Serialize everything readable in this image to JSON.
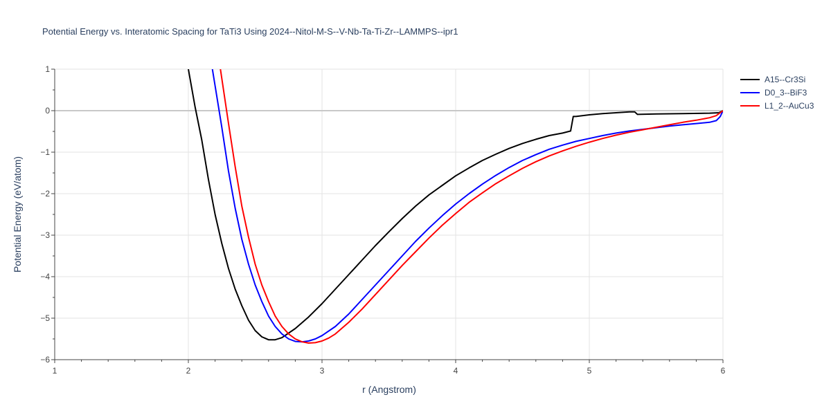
{
  "chart_data": {
    "type": "line",
    "title": "Potential Energy vs. Interatomic Spacing for TaTi3 Using 2024--Nitol-M-S--V-Nb-Ta-Ti-Zr--LAMMPS--ipr1",
    "xlabel": "r (Angstrom)",
    "ylabel": "Potential Energy (eV/atom)",
    "xlim": [
      1,
      6
    ],
    "ylim": [
      -6,
      1
    ],
    "xticks": [
      1,
      2,
      3,
      4,
      5,
      6
    ],
    "yticks": [
      1,
      0,
      -1,
      -2,
      -3,
      -4,
      -5,
      -6
    ],
    "ytick_labels": [
      "1",
      "0",
      "−1",
      "−2",
      "−3",
      "−4",
      "−5",
      "−6"
    ],
    "grid": true,
    "legend_position": "top-right",
    "series": [
      {
        "name": "A15--Cr3Si",
        "color": "#000000",
        "x": [
          2.0,
          2.05,
          2.1,
          2.15,
          2.2,
          2.25,
          2.3,
          2.35,
          2.4,
          2.45,
          2.5,
          2.55,
          2.6,
          2.65,
          2.7,
          2.8,
          2.9,
          3.0,
          3.1,
          3.2,
          3.3,
          3.4,
          3.5,
          3.6,
          3.7,
          3.8,
          3.9,
          4.0,
          4.1,
          4.2,
          4.3,
          4.4,
          4.5,
          4.6,
          4.7,
          4.8,
          4.86,
          4.88,
          4.9,
          5.0,
          5.1,
          5.2,
          5.3,
          5.34,
          5.36,
          5.5,
          5.7,
          5.9,
          5.97,
          6.0
        ],
        "y": [
          1.0,
          0.1,
          -0.7,
          -1.65,
          -2.5,
          -3.2,
          -3.8,
          -4.3,
          -4.7,
          -5.05,
          -5.3,
          -5.45,
          -5.52,
          -5.52,
          -5.47,
          -5.25,
          -4.97,
          -4.65,
          -4.3,
          -3.95,
          -3.6,
          -3.25,
          -2.92,
          -2.6,
          -2.3,
          -2.03,
          -1.8,
          -1.57,
          -1.38,
          -1.2,
          -1.05,
          -0.91,
          -0.79,
          -0.69,
          -0.6,
          -0.54,
          -0.49,
          -0.14,
          -0.14,
          -0.1,
          -0.07,
          -0.05,
          -0.03,
          -0.03,
          -0.09,
          -0.08,
          -0.07,
          -0.06,
          -0.05,
          0.0
        ]
      },
      {
        "name": "D0_3--BiF3",
        "color": "#0000ff",
        "x": [
          2.18,
          2.2,
          2.25,
          2.3,
          2.35,
          2.4,
          2.45,
          2.5,
          2.55,
          2.6,
          2.65,
          2.7,
          2.75,
          2.8,
          2.85,
          2.9,
          2.95,
          3.0,
          3.1,
          3.2,
          3.3,
          3.4,
          3.5,
          3.6,
          3.7,
          3.8,
          3.9,
          4.0,
          4.1,
          4.2,
          4.3,
          4.4,
          4.5,
          4.6,
          4.7,
          4.8,
          4.9,
          5.0,
          5.1,
          5.2,
          5.3,
          5.4,
          5.5,
          5.6,
          5.7,
          5.8,
          5.9,
          5.95,
          5.98,
          6.0
        ],
        "y": [
          1.0,
          0.6,
          -0.4,
          -1.45,
          -2.35,
          -3.1,
          -3.7,
          -4.2,
          -4.6,
          -4.95,
          -5.2,
          -5.38,
          -5.5,
          -5.56,
          -5.57,
          -5.55,
          -5.5,
          -5.42,
          -5.2,
          -4.9,
          -4.55,
          -4.2,
          -3.85,
          -3.5,
          -3.15,
          -2.83,
          -2.53,
          -2.25,
          -2.0,
          -1.77,
          -1.56,
          -1.37,
          -1.2,
          -1.06,
          -0.93,
          -0.83,
          -0.74,
          -0.67,
          -0.6,
          -0.54,
          -0.49,
          -0.45,
          -0.41,
          -0.37,
          -0.34,
          -0.31,
          -0.28,
          -0.24,
          -0.14,
          0.0
        ]
      },
      {
        "name": "L1_2--AuCu3",
        "color": "#ff0000",
        "x": [
          2.24,
          2.3,
          2.35,
          2.4,
          2.45,
          2.5,
          2.55,
          2.6,
          2.65,
          2.7,
          2.75,
          2.8,
          2.85,
          2.9,
          2.95,
          3.0,
          3.05,
          3.1,
          3.2,
          3.3,
          3.4,
          3.5,
          3.6,
          3.7,
          3.8,
          3.9,
          4.0,
          4.1,
          4.2,
          4.3,
          4.4,
          4.5,
          4.6,
          4.7,
          4.8,
          4.9,
          5.0,
          5.1,
          5.2,
          5.3,
          5.4,
          5.5,
          5.6,
          5.7,
          5.8,
          5.9,
          5.95,
          6.0
        ],
        "y": [
          1.0,
          -0.3,
          -1.35,
          -2.3,
          -3.05,
          -3.7,
          -4.2,
          -4.6,
          -4.95,
          -5.2,
          -5.38,
          -5.5,
          -5.57,
          -5.6,
          -5.59,
          -5.55,
          -5.48,
          -5.38,
          -5.1,
          -4.78,
          -4.43,
          -4.08,
          -3.73,
          -3.4,
          -3.07,
          -2.76,
          -2.48,
          -2.21,
          -1.98,
          -1.76,
          -1.57,
          -1.39,
          -1.23,
          -1.09,
          -0.97,
          -0.86,
          -0.76,
          -0.67,
          -0.59,
          -0.52,
          -0.46,
          -0.4,
          -0.34,
          -0.28,
          -0.23,
          -0.17,
          -0.12,
          0.0
        ]
      }
    ]
  }
}
